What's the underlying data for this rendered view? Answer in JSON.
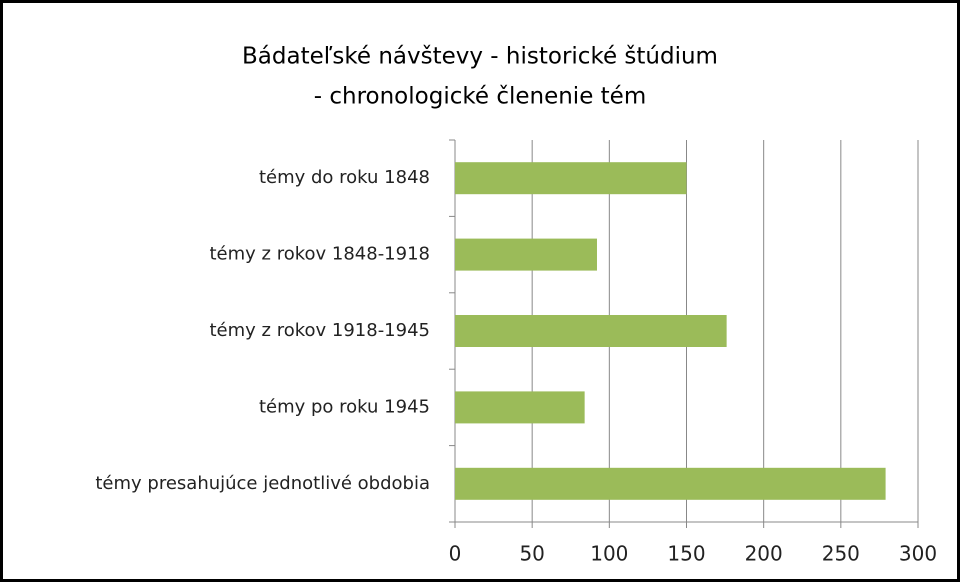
{
  "chart_data": {
    "type": "bar",
    "orientation": "horizontal",
    "title": [
      "Bádateľské návštevy - historické štúdium",
      "- chronologické členenie tém"
    ],
    "categories": [
      "témy do roku 1848",
      "témy z rokov 1848-1918",
      "témy z rokov 1918-1945",
      "témy po roku 1945",
      "témy presahujúce jednotlivé obdobia"
    ],
    "values": [
      150,
      92,
      176,
      84,
      279
    ],
    "color": "#9bbb59",
    "xlim": [
      0,
      300
    ],
    "xticks": [
      0,
      50,
      100,
      150,
      200,
      250,
      300
    ],
    "grid": true
  }
}
